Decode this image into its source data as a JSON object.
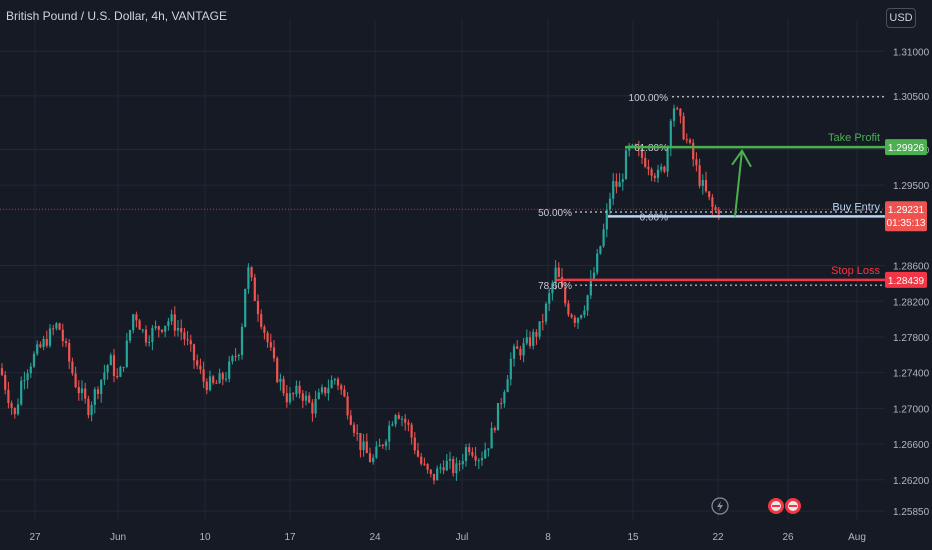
{
  "header": {
    "symbol": "British Pound / U.S. Dollar",
    "interval": "4h",
    "broker": "VANTAGE",
    "currency_button": "USD"
  },
  "colors": {
    "background": "#161a25",
    "grid": "#232734",
    "up": "#26a69a",
    "down": "#ef5350",
    "take_profit": "#4caf50",
    "stop_loss": "#f23645",
    "entry": "#b7d4f0",
    "fib": "#c9ccd6",
    "axis_text": "#b2b5be"
  },
  "chart_data": {
    "type": "candlestick",
    "y_axis": {
      "min": 1.2575,
      "max": 1.3135,
      "ticks": [
        "1.31000",
        "1.30500",
        "1.29900",
        "1.29500",
        "1.28600",
        "1.28200",
        "1.27800",
        "1.27400",
        "1.27000",
        "1.26600",
        "1.26200",
        "1.25850"
      ]
    },
    "x_axis": {
      "labels": [
        "27",
        "Jun",
        "10",
        "17",
        "24",
        "Jul",
        "8",
        "15",
        "22",
        "26",
        "Aug"
      ]
    },
    "price_path": [
      [
        0,
        1.2745
      ],
      [
        8,
        1.2715
      ],
      [
        15,
        1.269
      ],
      [
        22,
        1.2735
      ],
      [
        32,
        1.2755
      ],
      [
        45,
        1.2775
      ],
      [
        58,
        1.2795
      ],
      [
        66,
        1.2765
      ],
      [
        75,
        1.273
      ],
      [
        88,
        1.27
      ],
      [
        98,
        1.2725
      ],
      [
        110,
        1.2755
      ],
      [
        118,
        1.273
      ],
      [
        125,
        1.276
      ],
      [
        134,
        1.281
      ],
      [
        145,
        1.278
      ],
      [
        158,
        1.279
      ],
      [
        170,
        1.28
      ],
      [
        182,
        1.2785
      ],
      [
        194,
        1.2755
      ],
      [
        204,
        1.273
      ],
      [
        214,
        1.2725
      ],
      [
        226,
        1.2738
      ],
      [
        240,
        1.277
      ],
      [
        247,
        1.286
      ],
      [
        256,
        1.282
      ],
      [
        265,
        1.2785
      ],
      [
        276,
        1.274
      ],
      [
        288,
        1.271
      ],
      [
        300,
        1.272
      ],
      [
        312,
        1.27
      ],
      [
        324,
        1.272
      ],
      [
        336,
        1.2735
      ],
      [
        348,
        1.27
      ],
      [
        360,
        1.266
      ],
      [
        372,
        1.264
      ],
      [
        384,
        1.2665
      ],
      [
        396,
        1.27
      ],
      [
        408,
        1.268
      ],
      [
        420,
        1.264
      ],
      [
        432,
        1.262
      ],
      [
        444,
        1.264
      ],
      [
        456,
        1.263
      ],
      [
        468,
        1.266
      ],
      [
        480,
        1.2645
      ],
      [
        490,
        1.2665
      ],
      [
        500,
        1.2705
      ],
      [
        512,
        1.276
      ],
      [
        526,
        1.277
      ],
      [
        540,
        1.279
      ],
      [
        548,
        1.282
      ],
      [
        556,
        1.2855
      ],
      [
        566,
        1.2815
      ],
      [
        576,
        1.28
      ],
      [
        586,
        1.282
      ],
      [
        596,
        1.286
      ],
      [
        604,
        1.29
      ],
      [
        612,
        1.295
      ],
      [
        620,
        1.295
      ],
      [
        628,
        1.299
      ],
      [
        638,
        1.2985
      ],
      [
        648,
        1.2975
      ],
      [
        658,
        1.296
      ],
      [
        666,
        1.2975
      ],
      [
        672,
        1.3045
      ],
      [
        680,
        1.302
      ],
      [
        690,
        1.299
      ],
      [
        700,
        1.2955
      ],
      [
        708,
        1.2935
      ],
      [
        714,
        1.292
      ],
      [
        720,
        1.2925
      ]
    ],
    "last_price": {
      "value": "1.29231",
      "countdown": "01:35:13"
    },
    "levels": [
      {
        "name": "Take Profit",
        "label": "Take Profit",
        "price": 1.29926,
        "price_label": "1.29926"
      },
      {
        "name": "Buy Entry",
        "label": "Buy Entry",
        "price": 1.2915,
        "price_label": ""
      },
      {
        "name": "Stop Loss",
        "label": "Stop Loss",
        "price": 1.28439,
        "price_label": "1.28439"
      }
    ],
    "fib_levels": [
      {
        "label": "100.00%",
        "price": 1.3049
      },
      {
        "label": "61.80%",
        "price": 1.2993
      },
      {
        "label": "50.00%",
        "price": 1.292
      },
      {
        "label": "0.00%",
        "price": 1.2915
      },
      {
        "label": "78.60%",
        "price": 1.2838
      }
    ],
    "arrow": {
      "from_price": 1.2915,
      "to_price": 1.2993
    }
  }
}
